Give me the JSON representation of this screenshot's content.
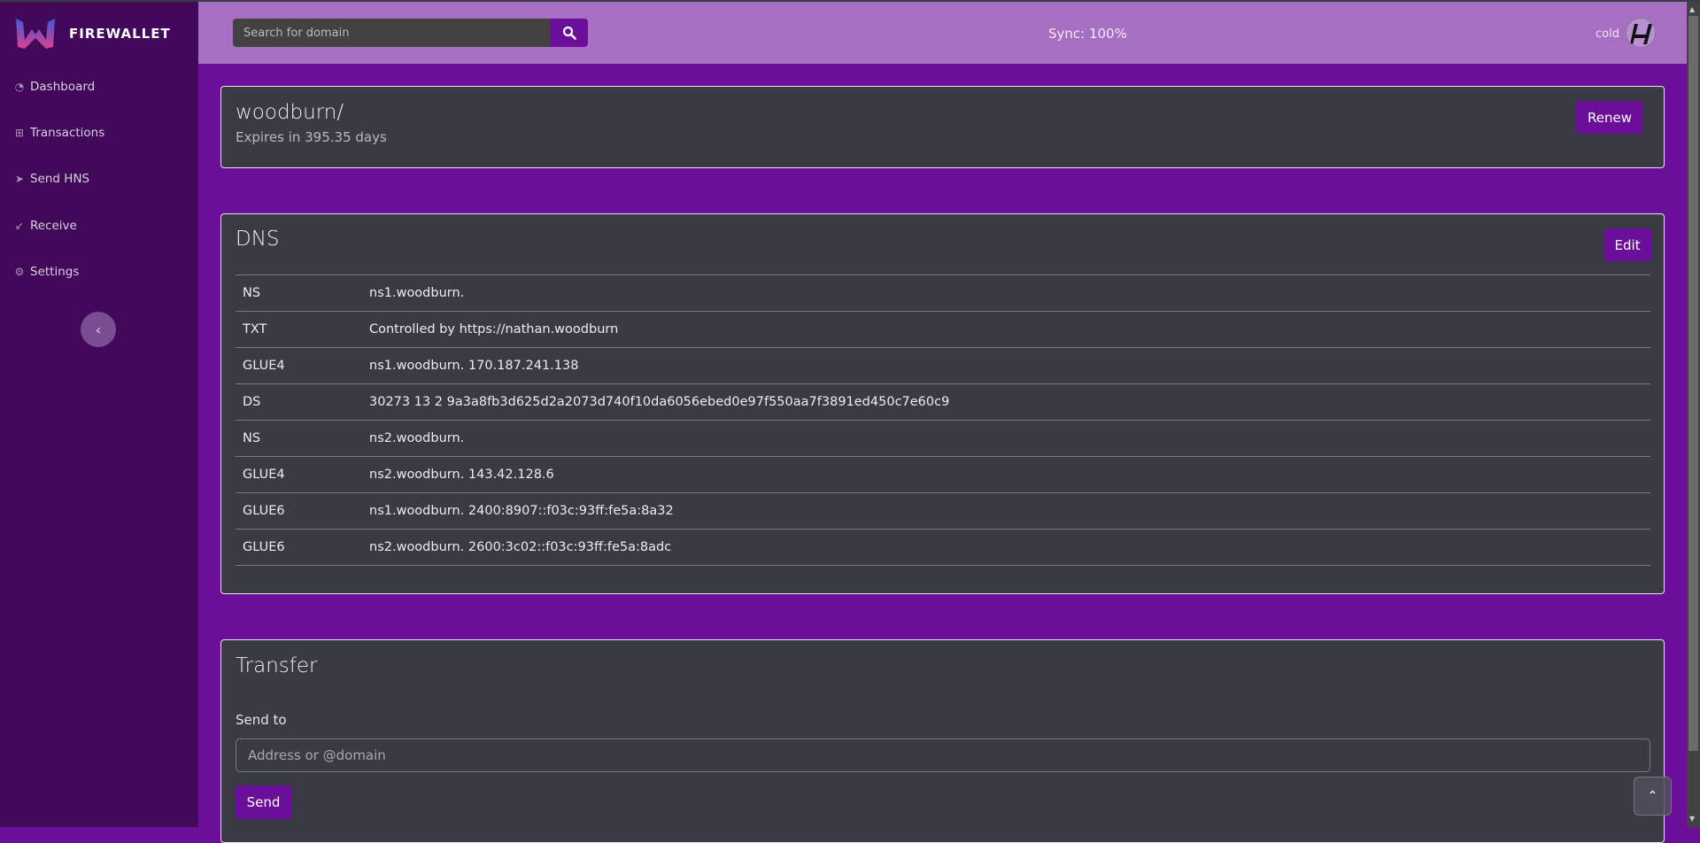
{
  "app": {
    "brand": "FIREWALLET"
  },
  "sidebar": {
    "items": [
      {
        "label": "Dashboard",
        "icon": "dashboard-icon"
      },
      {
        "label": "Transactions",
        "icon": "table-icon"
      },
      {
        "label": "Send HNS",
        "icon": "send-icon"
      },
      {
        "label": "Receive",
        "icon": "receive-arrow-icon"
      },
      {
        "label": "Settings",
        "icon": "gear-icon"
      }
    ]
  },
  "header": {
    "search_placeholder": "Search for domain",
    "sync": "Sync: 100%",
    "wallet": "cold"
  },
  "domain": {
    "name": "woodburn/",
    "expires": "Expires in 395.35 days",
    "renew": "Renew"
  },
  "dns": {
    "title": "DNS",
    "edit": "Edit",
    "records": [
      {
        "type": "NS",
        "value": "ns1.woodburn."
      },
      {
        "type": "TXT",
        "value": "Controlled by https://nathan.woodburn"
      },
      {
        "type": "GLUE4",
        "value": "ns1.woodburn. 170.187.241.138"
      },
      {
        "type": "DS",
        "value": "30273 13 2 9a3a8fb3d625d2a2073d740f10da6056ebed0e97f550aa7f3891ed450c7e60c9"
      },
      {
        "type": "NS",
        "value": "ns2.woodburn."
      },
      {
        "type": "GLUE4",
        "value": "ns2.woodburn. 143.42.128.6"
      },
      {
        "type": "GLUE6",
        "value": "ns1.woodburn. 2400:8907::f03c:93ff:fe5a:8a32"
      },
      {
        "type": "GLUE6",
        "value": "ns2.woodburn. 2600:3c02::f03c:93ff:fe5a:8adc"
      }
    ]
  },
  "transfer": {
    "title": "Transfer",
    "label": "Send to",
    "placeholder": "Address or @domain",
    "send": "Send"
  },
  "colors": {
    "sidebar": "#42085a",
    "header": "#a66fc2",
    "main": "#6b0f9a",
    "card": "#3a3a44",
    "accent": "#6b0f9a"
  }
}
